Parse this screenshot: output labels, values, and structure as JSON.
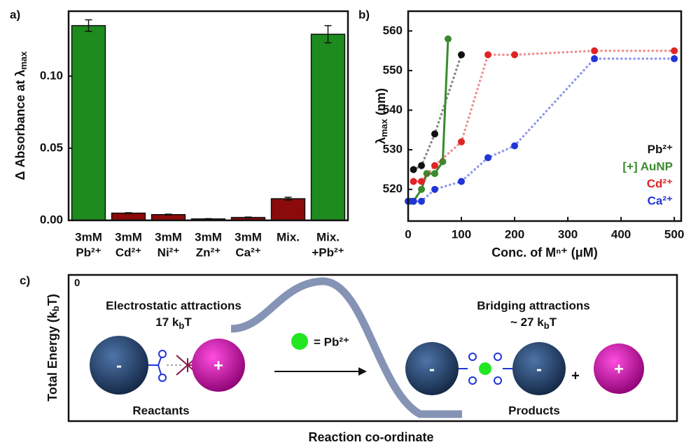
{
  "chart_data": [
    {
      "type": "bar",
      "panel": "a)",
      "y_label": [
        "Δ Absorbance at λ",
        "max"
      ],
      "categories": [
        [
          "3mM",
          "Pb²⁺"
        ],
        [
          "3mM",
          "Cd²⁺"
        ],
        [
          "3mM",
          "Ni²⁺"
        ],
        [
          "3mM",
          "Zn²⁺"
        ],
        [
          "3mM",
          "Ca²⁺"
        ],
        [
          "Mix."
        ],
        [
          "Mix.",
          "+Pb²⁺"
        ]
      ],
      "values": [
        0.135,
        0.005,
        0.004,
        0.001,
        0.002,
        0.015,
        0.129
      ],
      "errors": [
        0.004,
        0.0003,
        0.0003,
        0.0002,
        0.0003,
        0.001,
        0.006
      ],
      "colors": [
        "#1e8b1e",
        "#8b0a0a",
        "#8b0a0a",
        "#8b0a0a",
        "#8b0a0a",
        "#8b0a0a",
        "#1e8b1e"
      ],
      "ylim": [
        0,
        0.145
      ],
      "yticks": [
        {
          "value": 0,
          "label": "0.00"
        },
        {
          "value": 0.05,
          "label": "0.05"
        },
        {
          "value": 0.1,
          "label": "0.10"
        }
      ]
    },
    {
      "type": "scatter",
      "panel": "b)",
      "y_label": [
        "λ",
        "max",
        " (nm)"
      ],
      "x_label": "Conc. of Mⁿ⁺ (μM)",
      "legend": "lower right",
      "series": [
        {
          "name": "Pb²⁺",
          "color": "#111111",
          "linestyle": "dotted",
          "x": [
            10,
            25,
            50,
            100
          ],
          "values": [
            525,
            526,
            534,
            554
          ]
        },
        {
          "name": "[+] AuNP",
          "color": "#3a8a2e",
          "linestyle": "solid",
          "x": [
            5,
            10,
            25,
            35,
            50,
            65,
            75
          ],
          "values": [
            517,
            517,
            520,
            524,
            524,
            527,
            558
          ]
        },
        {
          "name": "Cd²⁺",
          "color": "#e02424",
          "linestyle": "dotted",
          "x": [
            10,
            25,
            50,
            100,
            150,
            200,
            350,
            500
          ],
          "values": [
            522,
            522,
            526,
            532,
            554,
            554,
            555,
            555
          ]
        },
        {
          "name": "Ca²⁺",
          "color": "#1f35d8",
          "linestyle": "dotted",
          "x": [
            0,
            10,
            25,
            50,
            100,
            150,
            200,
            350,
            500
          ],
          "values": [
            517,
            517,
            517,
            520,
            522,
            528,
            531,
            553,
            553
          ]
        }
      ],
      "xlim": [
        0,
        513
      ],
      "xticks": [
        0,
        100,
        200,
        300,
        400,
        500
      ],
      "ylim": [
        512,
        565
      ],
      "yticks": [
        520,
        530,
        540,
        550,
        560
      ]
    }
  ],
  "diagram": {
    "panel": "c)",
    "zero": "0",
    "y_axis": [
      "Total Energy (k",
      "b",
      "T)"
    ],
    "x_axis": "Reaction co-ordinate",
    "left_title": "Electrostatic attractions",
    "left_energy": [
      "17 k",
      "b",
      "T"
    ],
    "right_title": "Bridging attractions",
    "right_energy": [
      "~ 27 k",
      "b",
      "T"
    ],
    "key": "= Pb²⁺",
    "reactants": "Reactants",
    "products": "Products",
    "charges": [
      "-",
      "+",
      "-",
      "-",
      "+"
    ],
    "plus": "+"
  }
}
